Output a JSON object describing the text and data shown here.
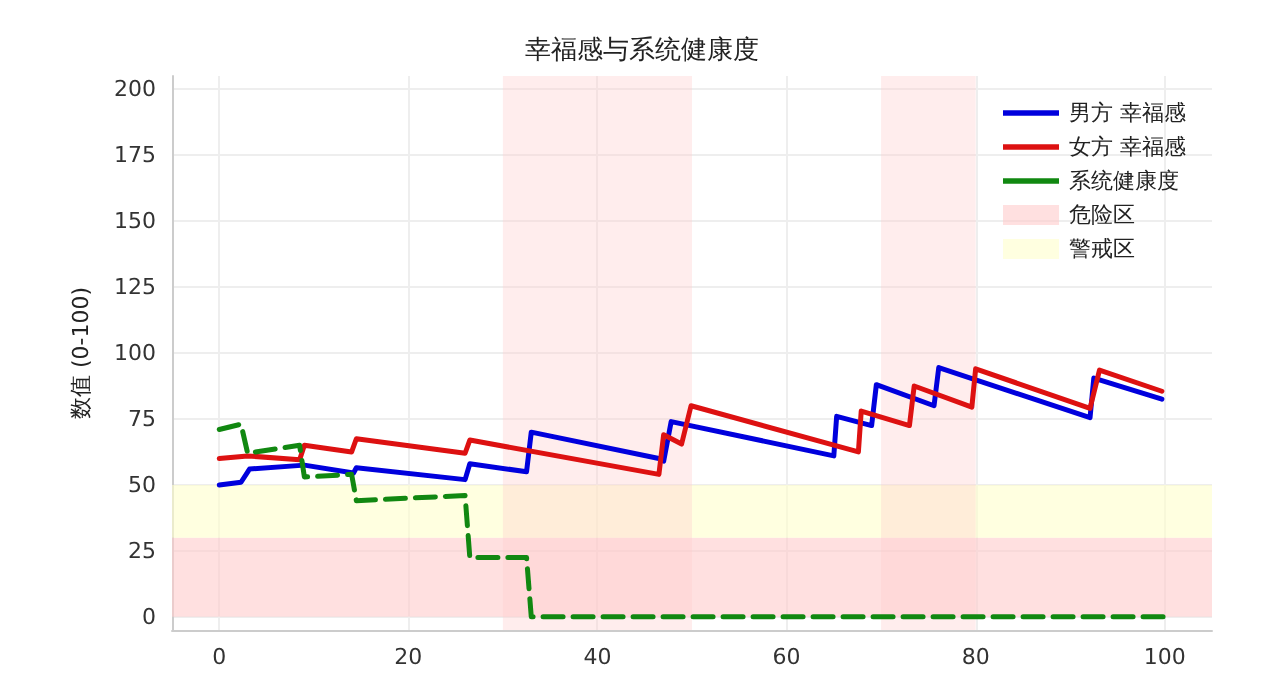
{
  "chart_data": {
    "type": "line",
    "title": "幸福感与系统健康度",
    "ylabel": "数值 (0-100)",
    "xlim": [
      -5,
      105
    ],
    "xticks": [
      0,
      20,
      40,
      60,
      80,
      100
    ],
    "ylim": [
      -5,
      205
    ],
    "yticks": [
      0,
      25,
      50,
      75,
      100,
      125,
      150,
      175,
      200
    ],
    "grid": true,
    "legend": "top right",
    "marker": "none",
    "series": [
      {
        "name": "男方 幸福感",
        "color": "#0000dd",
        "line_style": "solid",
        "x": [
          0,
          2.3,
          3.2,
          9,
          14.2,
          14.5,
          26,
          26.5,
          32.5,
          33,
          46.5,
          47,
          47.8,
          65,
          65.3,
          69,
          69.5,
          75.6,
          76.1,
          92.1,
          92.5,
          99.7
        ],
        "values": [
          50,
          51,
          56,
          57.5,
          54.5,
          56.5,
          52,
          58,
          55,
          70,
          60,
          59,
          74,
          61,
          76,
          72.5,
          88,
          80,
          94.5,
          75.5,
          90.5,
          82.5
        ]
      },
      {
        "name": "女方 幸福感",
        "color": "#dd1111",
        "line_style": "solid",
        "x": [
          0,
          3,
          8.5,
          9,
          14,
          14.5,
          26,
          26.5,
          46.5,
          47,
          48.9,
          49.9,
          67.6,
          67.9,
          73,
          73.5,
          79.6,
          80,
          92.1,
          93.1,
          99.7
        ],
        "values": [
          60,
          61,
          59.5,
          65,
          62.5,
          67.5,
          62,
          67,
          54,
          69,
          65.5,
          80,
          62.5,
          78,
          72.5,
          87.5,
          79.5,
          94,
          79,
          93.5,
          85.5
        ]
      },
      {
        "name": "系统健康度",
        "color": "#118811",
        "line_style": "dashed",
        "x": [
          0,
          2.3,
          3,
          8.5,
          9,
          14,
          14.5,
          26,
          26.5,
          32.5,
          33,
          100
        ],
        "values": [
          71,
          73,
          62,
          65,
          53,
          54,
          44,
          46,
          22.5,
          22.5,
          0,
          0
        ]
      }
    ],
    "bands": [
      {
        "axis": "y",
        "from": 0,
        "to": 30,
        "label": "危险区",
        "color": "#ffcccc"
      },
      {
        "axis": "y",
        "from": 30,
        "to": 50,
        "label": "警戒区",
        "color": "#ffffcc"
      },
      {
        "axis": "x",
        "from": 30,
        "to": 50,
        "color": "#ffcccc"
      },
      {
        "axis": "x",
        "from": 70,
        "to": 80,
        "color": "#ffcccc"
      }
    ]
  }
}
